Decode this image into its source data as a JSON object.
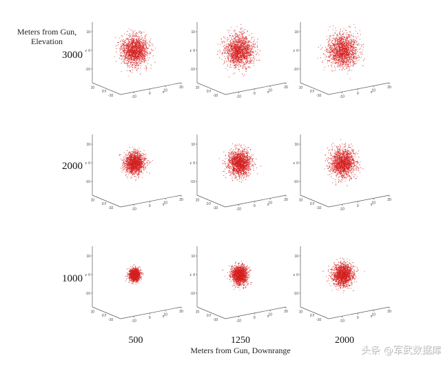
{
  "chart_data": {
    "type": "scatter",
    "projection": "3d",
    "ylabel_lines": [
      "Meters from Gun,",
      "Elevation"
    ],
    "xlabel": "Meters from Gun, Downrange",
    "rows": [
      "3000",
      "2000",
      "1000"
    ],
    "columns": [
      "500",
      "1250",
      "2000"
    ],
    "axis_letters": {
      "x": "x",
      "y": "y",
      "z": "z"
    },
    "x_ticks": [
      "-10",
      "0",
      "10",
      "20"
    ],
    "y_ticks": [
      "10",
      "0",
      "-10"
    ],
    "z_ticks": [
      "10",
      "0",
      "-10"
    ],
    "point_color": "#d42020",
    "spread": [
      [
        1.0,
        1.06,
        1.12
      ],
      [
        0.72,
        0.85,
        0.95
      ],
      [
        0.4,
        0.62,
        0.78
      ]
    ],
    "points_per_panel": 1600
  },
  "watermark": "头条 @军武数据库"
}
